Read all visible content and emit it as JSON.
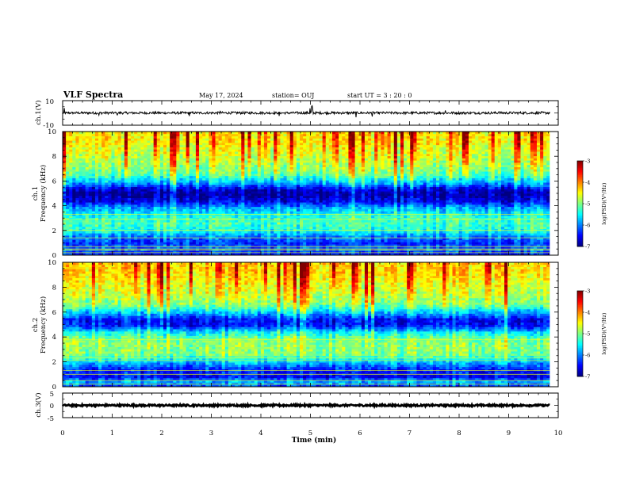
{
  "header": {
    "title": "VLF Spectra",
    "date": "May 17, 2024",
    "station": "station= OUJ",
    "start": "start  UT  =   3  : 20 : 0"
  },
  "chart_data": [
    {
      "type": "line",
      "panel": "ch1-waveform",
      "ylabel": "ch.1(V)",
      "ylim": [
        -10,
        10
      ],
      "yticks": [
        "10",
        "-10"
      ],
      "x_range_min": [
        0,
        9.83
      ],
      "baseline": 0,
      "noise_amplitude": 1,
      "spikes": [
        {
          "x": 0.03,
          "amp": 3
        },
        {
          "x": 0.73,
          "amp": 2.5
        },
        {
          "x": 1.1,
          "amp": 2.5
        },
        {
          "x": 2.56,
          "amp": 3
        },
        {
          "x": 3.18,
          "amp": 2
        },
        {
          "x": 4.37,
          "amp": 3
        },
        {
          "x": 4.99,
          "amp": 4
        },
        {
          "x": 5.03,
          "amp": 5
        },
        {
          "x": 5.05,
          "amp": 3.5
        },
        {
          "x": 5.92,
          "amp": 4
        },
        {
          "x": 6.25,
          "amp": 2.5
        },
        {
          "x": 7.72,
          "amp": 2.5
        },
        {
          "x": 8.8,
          "amp": 2
        }
      ]
    },
    {
      "type": "heatmap",
      "panel": "ch1-spectrogram",
      "ylabel": "ch.1",
      "ylabel2": "Frequency  (kHz)",
      "ylim": [
        0,
        10
      ],
      "yticks": [
        "0",
        "2",
        "4",
        "6",
        "8",
        "10"
      ],
      "x_range_min": [
        0,
        9.83
      ],
      "colorbar": {
        "label": "log(PSD)(V²/Hz)",
        "range": [
          -7,
          -3
        ],
        "ticks": [
          "-3",
          "-4",
          "-5",
          "-6",
          "-7"
        ]
      },
      "profile": [
        {
          "f": 0,
          "v": -6.5
        },
        {
          "f": 0.5,
          "v": -6.1
        },
        {
          "f": 1.0,
          "v": -6.3
        },
        {
          "f": 1.5,
          "v": -6.0
        },
        {
          "f": 2.0,
          "v": -5.4
        },
        {
          "f": 2.6,
          "v": -5.2
        },
        {
          "f": 3.2,
          "v": -5.4
        },
        {
          "f": 3.8,
          "v": -5.8
        },
        {
          "f": 4.4,
          "v": -6.6
        },
        {
          "f": 5.0,
          "v": -6.9
        },
        {
          "f": 5.4,
          "v": -6.6
        },
        {
          "f": 5.8,
          "v": -5.9
        },
        {
          "f": 6.6,
          "v": -5.1
        },
        {
          "f": 7.5,
          "v": -4.8
        },
        {
          "f": 8.5,
          "v": -4.6
        },
        {
          "f": 9.3,
          "v": -4.4
        },
        {
          "f": 10,
          "v": -4.4
        }
      ],
      "lines_khz": [
        0.2,
        0.4,
        0.5,
        0.7,
        1.4,
        2.0,
        2.9,
        3.3
      ]
    },
    {
      "type": "heatmap",
      "panel": "ch2-spectrogram",
      "ylabel": "ch.2",
      "ylabel2": "Frequency  (kHz)",
      "ylim": [
        0,
        10
      ],
      "yticks": [
        "0",
        "2",
        "4",
        "6",
        "8",
        "10"
      ],
      "x_range_min": [
        0,
        9.83
      ],
      "colorbar": {
        "label": "log(PSD)(V²/Hz)",
        "range": [
          -7,
          -3
        ],
        "ticks": [
          "-3",
          "-4",
          "-5",
          "-6",
          "-7"
        ]
      },
      "profile": [
        {
          "f": 0,
          "v": -6.3
        },
        {
          "f": 0.4,
          "v": -5.7
        },
        {
          "f": 0.8,
          "v": -6.5
        },
        {
          "f": 1.4,
          "v": -6.4
        },
        {
          "f": 2.1,
          "v": -5.6
        },
        {
          "f": 2.6,
          "v": -5.0
        },
        {
          "f": 3.2,
          "v": -4.9
        },
        {
          "f": 3.8,
          "v": -5.0
        },
        {
          "f": 4.4,
          "v": -5.5
        },
        {
          "f": 4.9,
          "v": -6.4
        },
        {
          "f": 5.4,
          "v": -6.5
        },
        {
          "f": 5.9,
          "v": -5.8
        },
        {
          "f": 6.6,
          "v": -5.0
        },
        {
          "f": 7.5,
          "v": -4.7
        },
        {
          "f": 8.5,
          "v": -4.5
        },
        {
          "f": 9.3,
          "v": -4.3
        },
        {
          "f": 10,
          "v": -4.3
        }
      ],
      "lines_khz": [
        0.2,
        0.5,
        1.0,
        1.3,
        2.1,
        2.3,
        3.8
      ]
    },
    {
      "type": "line",
      "panel": "ch3-waveform",
      "ylabel": "ch.3(V)",
      "ylim": [
        -5,
        5
      ],
      "yticks": [
        "5",
        "0",
        "-5"
      ],
      "x_range_min": [
        0,
        9.83
      ],
      "baseline": 0,
      "noise_amplitude": 0.35
    }
  ],
  "xaxis": {
    "label": "Time  (min)",
    "range": [
      0,
      10
    ],
    "ticks": [
      "0",
      "1",
      "2",
      "3",
      "4",
      "5",
      "6",
      "7",
      "8",
      "9",
      "10"
    ]
  },
  "colors": {
    "jet": [
      "#000080",
      "#0000ff",
      "#0080ff",
      "#00ffff",
      "#80ff80",
      "#ffff00",
      "#ff8000",
      "#ff0000",
      "#800000"
    ],
    "frame": "#000000"
  }
}
